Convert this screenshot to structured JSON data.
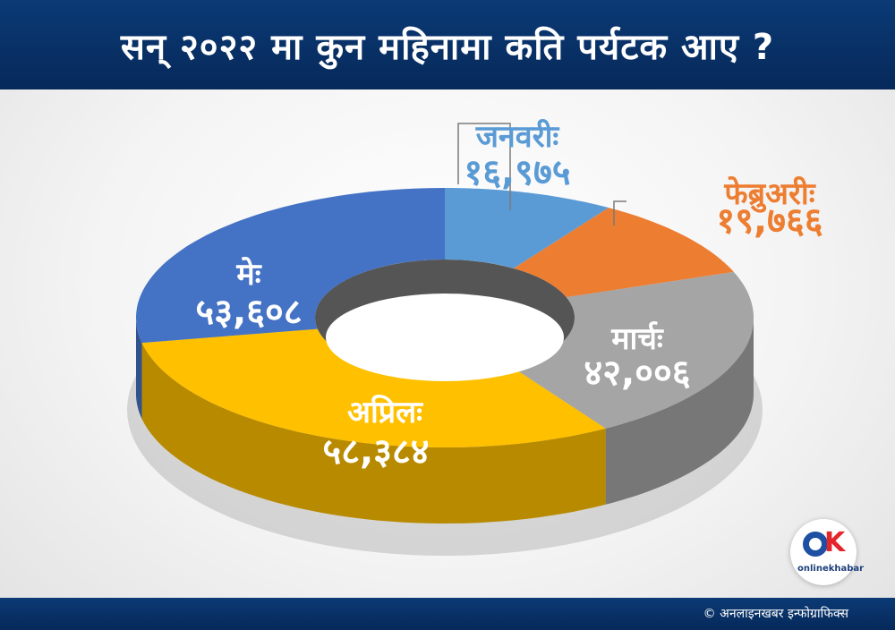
{
  "header": {
    "title": "सन् २०२२ मा कुन महिनामा कति पर्यटक आए ?"
  },
  "chart_data": {
    "type": "pie",
    "style": "3d-donut",
    "title": "सन् २०२२ मा कुन महिनामा कति पर्यटक आए ?",
    "categories": [
      "जनवरीः",
      "फेब्रुअरीः",
      "मार्चः",
      "अप्रिलः",
      "मेः"
    ],
    "values": [
      16975,
      19766,
      42006,
      58384,
      53608
    ],
    "display_values": [
      "१६,९७५",
      "१९,७६६",
      "४२,००६",
      "५८,३८४",
      "५३,६०८"
    ],
    "colors": [
      "#5b9bd5",
      "#ed7d31",
      "#a5a5a5",
      "#ffc000",
      "#4472c4"
    ],
    "label_colors": [
      "#5b9bd5",
      "#ed7d31",
      "#ffffff",
      "#ffffff",
      "#ffffff"
    ]
  },
  "logo": {
    "text": "onlinekhabar"
  },
  "footer": {
    "credit": "© अनलाइनखबर इन्फोग्राफिक्स"
  }
}
